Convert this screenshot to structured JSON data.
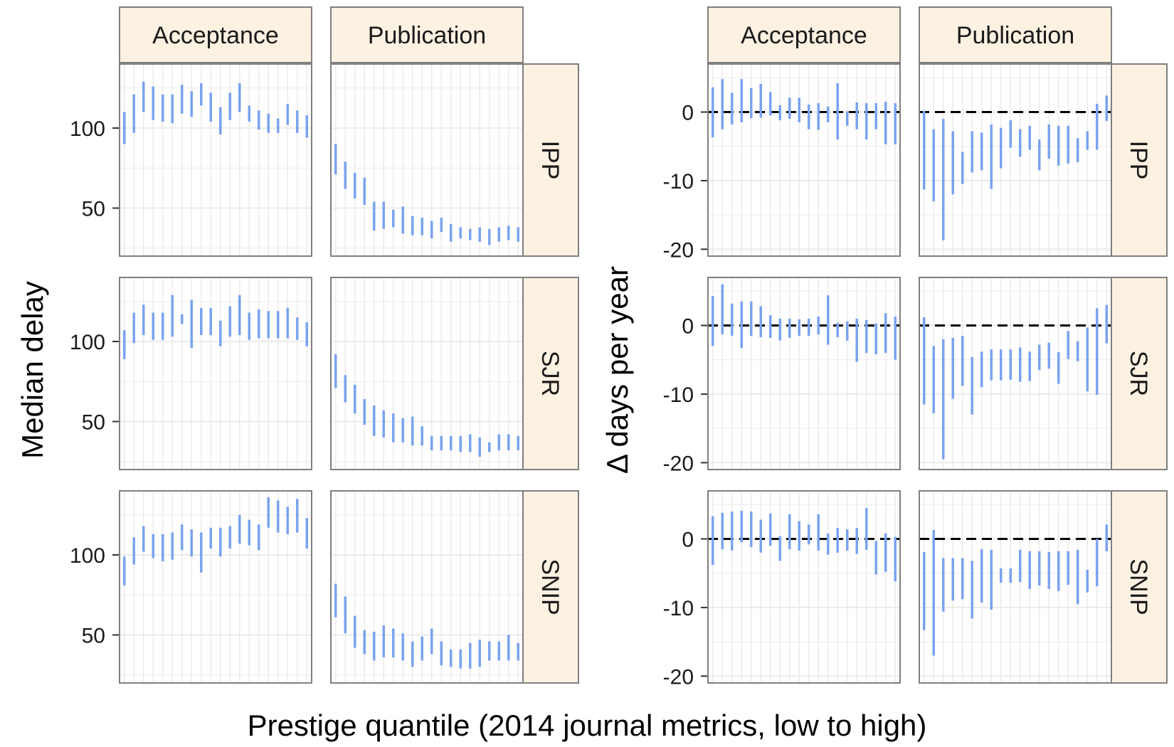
{
  "figure": {
    "xlabel": "Prestige quantile (2014 journal metrics, low to high)",
    "left_ylabel": "Median delay",
    "right_ylabel": "Δ days per year"
  },
  "colors": {
    "bar": "#7aa3ef",
    "strip_fill": "#fdf1e2",
    "panel_border": "#7f7f7f",
    "grid": "#ebebeb",
    "reference_line": "#000000"
  },
  "chart_data": [
    {
      "type": "errorbar",
      "name": "left",
      "facet_columns": [
        "Acceptance",
        "Publication"
      ],
      "facet_rows": [
        "IPP",
        "SJR",
        "SNIP"
      ],
      "ylabel": "Median delay",
      "ylim": [
        20,
        140
      ],
      "yticks": [
        50,
        100
      ],
      "grid": true,
      "x": [
        1,
        2,
        3,
        4,
        5,
        6,
        7,
        8,
        9,
        10,
        11,
        12,
        13,
        14,
        15,
        16,
        17,
        18,
        19,
        20
      ],
      "panels": [
        {
          "row": "IPP",
          "col": "Acceptance",
          "low": [
            90,
            97,
            110,
            105,
            104,
            103,
            109,
            107,
            114,
            104,
            96,
            105,
            110,
            104,
            99,
            97,
            97,
            102,
            97,
            94
          ],
          "high": [
            110,
            121,
            129,
            126,
            121,
            121,
            127,
            123,
            128,
            122,
            113,
            122,
            128,
            114,
            111,
            109,
            106,
            115,
            111,
            108
          ]
        },
        {
          "row": "IPP",
          "col": "Publication",
          "low": [
            71,
            62,
            56,
            52,
            36,
            37,
            38,
            34,
            33,
            33,
            31,
            35,
            29,
            31,
            30,
            29,
            27,
            29,
            30,
            29
          ],
          "high": [
            90,
            79,
            72,
            69,
            54,
            54,
            49,
            51,
            45,
            44,
            42,
            44,
            40,
            38,
            37,
            38,
            37,
            38,
            39,
            38
          ]
        },
        {
          "row": "SJR",
          "col": "Acceptance",
          "low": [
            89,
            99,
            104,
            101,
            101,
            103,
            111,
            96,
            104,
            104,
            97,
            103,
            104,
            101,
            102,
            102,
            102,
            102,
            101,
            97
          ],
          "high": [
            107,
            118,
            123,
            118,
            118,
            129,
            117,
            126,
            121,
            121,
            113,
            122,
            129,
            118,
            120,
            119,
            119,
            121,
            115,
            112
          ]
        },
        {
          "row": "SJR",
          "col": "Publication",
          "low": [
            71,
            62,
            55,
            48,
            41,
            40,
            37,
            37,
            35,
            35,
            32,
            32,
            32,
            31,
            31,
            28,
            31,
            32,
            32,
            32
          ],
          "high": [
            92,
            79,
            73,
            64,
            60,
            57,
            55,
            52,
            53,
            47,
            41,
            41,
            41,
            41,
            42,
            40,
            37,
            42,
            42,
            41
          ]
        },
        {
          "row": "SNIP",
          "col": "Acceptance",
          "low": [
            81,
            94,
            102,
            98,
            96,
            97,
            103,
            99,
            89,
            104,
            99,
            104,
            107,
            106,
            103,
            117,
            114,
            113,
            114,
            104
          ],
          "high": [
            99,
            111,
            118,
            113,
            113,
            114,
            119,
            116,
            114,
            117,
            117,
            118,
            125,
            122,
            119,
            136,
            134,
            130,
            135,
            123
          ]
        },
        {
          "row": "SNIP",
          "col": "Publication",
          "low": [
            61,
            51,
            42,
            38,
            34,
            36,
            36,
            34,
            30,
            34,
            38,
            31,
            30,
            29,
            29,
            30,
            34,
            34,
            34,
            34
          ],
          "high": [
            82,
            74,
            62,
            53,
            52,
            56,
            54,
            51,
            46,
            49,
            54,
            46,
            41,
            41,
            45,
            47,
            46,
            46,
            50,
            45
          ]
        }
      ]
    },
    {
      "type": "errorbar",
      "name": "right",
      "facet_columns": [
        "Acceptance",
        "Publication"
      ],
      "facet_rows": [
        "IPP",
        "SJR",
        "SNIP"
      ],
      "ylabel": "Δ days per year",
      "ylim": [
        -21,
        7
      ],
      "yticks": [
        -20,
        -10,
        0
      ],
      "reference_line": 0,
      "grid": true,
      "x": [
        1,
        2,
        3,
        4,
        5,
        6,
        7,
        8,
        9,
        10,
        11,
        12,
        13,
        14,
        15,
        16,
        17,
        18,
        19,
        20
      ],
      "panels": [
        {
          "row": "IPP",
          "col": "Acceptance",
          "low": [
            -3.7,
            -2.5,
            -1.8,
            -1.5,
            -0.9,
            -0.8,
            -0.5,
            -1.2,
            -1.0,
            -1.5,
            -2.5,
            -2.6,
            -1.5,
            -4.0,
            -2.0,
            -2.5,
            -4.0,
            -2.5,
            -4.7,
            -4.7
          ],
          "high": [
            3.6,
            4.8,
            2.8,
            4.8,
            3.5,
            4.1,
            2.9,
            1.0,
            2.1,
            2.1,
            1.1,
            1.3,
            0.8,
            4.2,
            0.1,
            1.4,
            1.3,
            1.3,
            1.5,
            1.3
          ]
        },
        {
          "row": "IPP",
          "col": "Publication",
          "low": [
            -11.3,
            -13.0,
            -18.7,
            -12.0,
            -10.5,
            -8.8,
            -8.5,
            -11.2,
            -8.2,
            -5.2,
            -6.5,
            -5.5,
            -8.5,
            -6.8,
            -7.8,
            -7.5,
            -7.3,
            -5.5,
            -5.5,
            -1.3
          ],
          "high": [
            0.2,
            -2.5,
            -1.0,
            -2.8,
            -5.8,
            -2.8,
            -3.0,
            -1.8,
            -2.3,
            -1.2,
            -2.5,
            -2.0,
            -4.0,
            -1.8,
            -2.0,
            -2.0,
            -3.8,
            -2.8,
            1.2,
            2.4
          ]
        },
        {
          "row": "SJR",
          "col": "Acceptance",
          "low": [
            -3.0,
            -1.3,
            -1.5,
            -3.3,
            -1.5,
            -1.7,
            -1.8,
            -2.2,
            -1.8,
            -1.5,
            -1.5,
            -1.3,
            -2.8,
            -1.7,
            -2.2,
            -5.3,
            -4.0,
            -4.2,
            -4.0,
            -5.0
          ],
          "high": [
            4.3,
            6.0,
            3.2,
            3.5,
            3.5,
            2.8,
            1.5,
            1.0,
            1.0,
            0.9,
            1.0,
            1.3,
            4.4,
            0.4,
            0.6,
            1.0,
            0.8,
            0.3,
            1.8,
            1.3
          ]
        },
        {
          "row": "SJR",
          "col": "Publication",
          "low": [
            -11.5,
            -12.8,
            -19.5,
            -10.7,
            -8.8,
            -13.0,
            -9.0,
            -8.0,
            -8.0,
            -7.9,
            -8.2,
            -8.1,
            -6.5,
            -6.3,
            -8.5,
            -4.9,
            -5.2,
            -9.6,
            -10.1,
            -2.6
          ],
          "high": [
            1.2,
            -3.0,
            -2.0,
            -1.8,
            -1.5,
            -4.6,
            -3.8,
            -3.5,
            -3.5,
            -3.5,
            -3.2,
            -3.8,
            -2.8,
            -2.5,
            -3.9,
            -0.8,
            -2.3,
            -0.3,
            2.5,
            3.0
          ]
        },
        {
          "row": "SNIP",
          "col": "Acceptance",
          "low": [
            -3.8,
            -1.5,
            -1.7,
            -0.5,
            -1.2,
            -2.0,
            -1.0,
            -3.2,
            -1.5,
            -1.7,
            -0.8,
            -1.7,
            -2.3,
            -2.0,
            -1.7,
            -2.2,
            -1.6,
            -5.2,
            -4.8,
            -6.2
          ],
          "high": [
            3.3,
            3.8,
            4.0,
            4.1,
            4.0,
            2.8,
            3.7,
            0.4,
            3.6,
            2.6,
            2.1,
            3.6,
            0.8,
            1.6,
            1.4,
            1.6,
            4.5,
            -0.3,
            0.8,
            0.3
          ]
        },
        {
          "row": "SNIP",
          "col": "Publication",
          "low": [
            -13.3,
            -17.0,
            -10.6,
            -9.0,
            -8.8,
            -11.6,
            -9.3,
            -10.3,
            -6.4,
            -6.4,
            -6.3,
            -7.3,
            -6.8,
            -7.3,
            -7.6,
            -6.7,
            -9.5,
            -7.8,
            -6.9,
            -1.8
          ],
          "high": [
            -1.9,
            1.3,
            -2.8,
            -2.8,
            -2.8,
            -3.2,
            -1.5,
            -1.6,
            -4.3,
            -4.3,
            -1.6,
            -1.8,
            -1.8,
            -1.9,
            -1.8,
            -1.8,
            -1.6,
            -4.5,
            0.0,
            2.1
          ]
        }
      ]
    }
  ]
}
